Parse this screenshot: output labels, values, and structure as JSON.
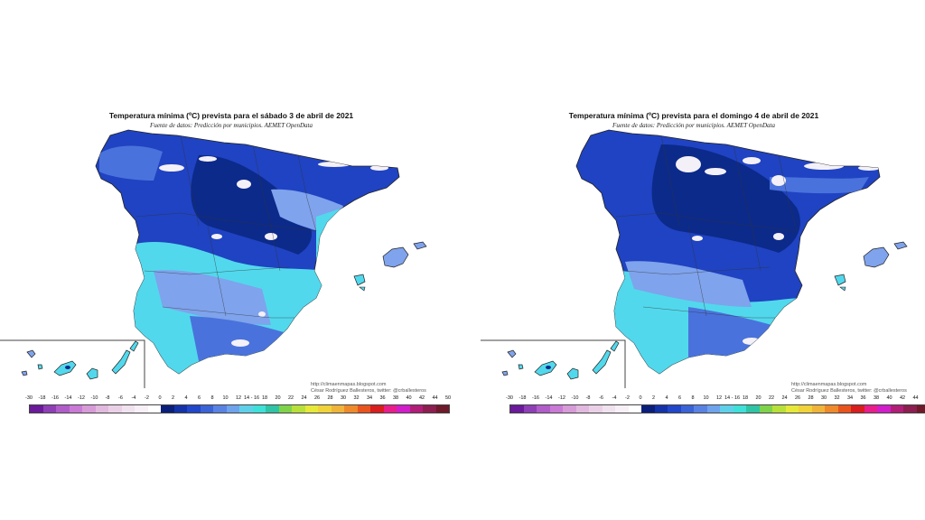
{
  "maps": [
    {
      "title": "Temperatura mínima (ºC) prevista para el sábado 3 de abril de 2021",
      "subtitle": "Fuente de datos: Predicción por municipios. AEMET OpenData",
      "credit_blog": "http://climaenmapas.blogspot.com",
      "credit_author": "César Rodríguez Ballesteros, twitter: @crballesteros"
    },
    {
      "title": "Temperatura mínima (ºC) prevista para el domingo 4 de abril de 2021",
      "subtitle": "Fuente de datos: Predicción por municipios. AEMET OpenData",
      "credit_blog": "http://climaenmapas.blogspot.com",
      "credit_author": "César Rodríguez Ballesteros, twitter: @crballesteros"
    }
  ],
  "legend": {
    "labels": [
      "-30",
      "-18",
      "-16",
      "-14",
      "-12",
      "-10",
      "-8",
      "-6",
      "-4",
      "-2",
      "0",
      "2",
      "4",
      "6",
      "8",
      "10",
      "12",
      "14 - 16",
      "18",
      "20",
      "22",
      "24",
      "26",
      "28",
      "30",
      "32",
      "34",
      "36",
      "38",
      "40",
      "42",
      "44",
      "50"
    ],
    "colors": [
      "#6a1a9a",
      "#8e3fb5",
      "#b05dc9",
      "#c97ad6",
      "#d79bd8",
      "#e2b9de",
      "#ead0e6",
      "#f0e2ee",
      "#f7f0f6",
      "#ffffff",
      "#0a1f7a",
      "#1533a8",
      "#2247c8",
      "#3a63d6",
      "#5a82e2",
      "#6fa3ec",
      "#5fd0ea",
      "#3fe0d8",
      "#2fc4a6",
      "#7fd34a",
      "#b8e03a",
      "#e6e83a",
      "#f0d23a",
      "#f0b43a",
      "#ee8a2c",
      "#e8541e",
      "#d81e1e",
      "#e81e8a",
      "#d01ec8",
      "#b01e78",
      "#8c1e50",
      "#6e1a2a"
    ]
  },
  "colors": {
    "very_cold": "#0c2a8a",
    "cold": "#1f43c2",
    "cool": "#4a72dc",
    "mild": "#7fa3ec",
    "light": "#52d8ec",
    "snow": "#f4f0f8"
  }
}
